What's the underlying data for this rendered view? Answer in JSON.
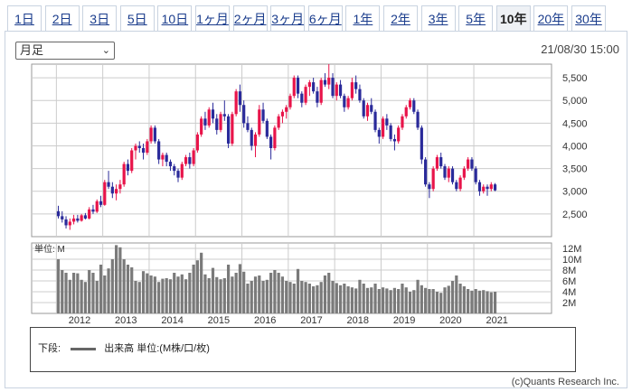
{
  "period_tabs": [
    "1日",
    "2日",
    "3日",
    "5日",
    "10日",
    "1ヶ月",
    "2ヶ月",
    "3ヶ月",
    "6ヶ月",
    "1年",
    "2年",
    "3年",
    "5年",
    "10年",
    "20年",
    "30年"
  ],
  "active_tab": "10年",
  "interval_select": "月足",
  "timestamp": "21/08/30 15:00",
  "legend_prefix": "下段:",
  "legend_label": "出来高 単位:(M株/口/枚)",
  "copyright": "(c)Quants Research Inc.",
  "colors": {
    "up": "#e8144a",
    "down": "#2a2a9a",
    "volume": "#7a7a7a",
    "grid": "#cccccc"
  },
  "chart_data": [
    {
      "type": "candlestick",
      "x_tick_labels": [
        "2012",
        "2013",
        "2014",
        "2015",
        "2016",
        "2017",
        "2018",
        "2019",
        "2020",
        "2021"
      ],
      "y_tick_labels": [
        "2,500",
        "3,000",
        "3,500",
        "4,000",
        "4,500",
        "5,000",
        "5,500"
      ],
      "ylim": [
        2000,
        5800
      ],
      "start_year": 2011.5,
      "ohlc": [
        [
          2560,
          2680,
          2400,
          2450
        ],
        [
          2450,
          2560,
          2310,
          2380
        ],
        [
          2380,
          2450,
          2180,
          2250
        ],
        [
          2250,
          2400,
          2150,
          2330
        ],
        [
          2330,
          2480,
          2270,
          2400
        ],
        [
          2400,
          2480,
          2310,
          2350
        ],
        [
          2350,
          2500,
          2330,
          2470
        ],
        [
          2470,
          2520,
          2380,
          2400
        ],
        [
          2400,
          2650,
          2380,
          2600
        ],
        [
          2600,
          2700,
          2500,
          2550
        ],
        [
          2550,
          2820,
          2520,
          2780
        ],
        [
          2780,
          2900,
          2650,
          2700
        ],
        [
          2700,
          3250,
          2680,
          3200
        ],
        [
          3200,
          3450,
          3050,
          3100
        ],
        [
          3100,
          3200,
          2850,
          2950
        ],
        [
          2950,
          3150,
          2800,
          3050
        ],
        [
          3050,
          3250,
          2950,
          3150
        ],
        [
          3150,
          3650,
          3100,
          3600
        ],
        [
          3600,
          3700,
          3350,
          3450
        ],
        [
          3450,
          3950,
          3400,
          3900
        ],
        [
          3900,
          4050,
          3700,
          4000
        ],
        [
          4000,
          4100,
          3850,
          3950
        ],
        [
          3950,
          4050,
          3700,
          3850
        ],
        [
          3850,
          4150,
          3800,
          4100
        ],
        [
          4100,
          4450,
          4050,
          4400
        ],
        [
          4400,
          4450,
          4050,
          4100
        ],
        [
          4100,
          4150,
          3600,
          3700
        ],
        [
          3700,
          3850,
          3550,
          3800
        ],
        [
          3800,
          3850,
          3550,
          3650
        ],
        [
          3650,
          3700,
          3450,
          3550
        ],
        [
          3550,
          3600,
          3350,
          3450
        ],
        [
          3450,
          3500,
          3200,
          3300
        ],
        [
          3300,
          3650,
          3250,
          3600
        ],
        [
          3600,
          3800,
          3550,
          3750
        ],
        [
          3750,
          3850,
          3500,
          3600
        ],
        [
          3600,
          3950,
          3550,
          3900
        ],
        [
          3900,
          4300,
          3850,
          4250
        ],
        [
          4250,
          4650,
          4200,
          4600
        ],
        [
          4600,
          4750,
          4350,
          4450
        ],
        [
          4450,
          4850,
          4400,
          4800
        ],
        [
          4800,
          4950,
          4500,
          4600
        ],
        [
          4600,
          4700,
          4250,
          4350
        ],
        [
          4350,
          4750,
          4300,
          4700
        ],
        [
          4700,
          5000,
          4550,
          4650
        ],
        [
          4650,
          4700,
          3950,
          4050
        ],
        [
          4050,
          4750,
          4000,
          4700
        ],
        [
          4700,
          5250,
          4650,
          5200
        ],
        [
          5200,
          5350,
          4750,
          4900
        ],
        [
          4900,
          5000,
          4400,
          4500
        ],
        [
          4500,
          4650,
          4300,
          4350
        ],
        [
          4350,
          4400,
          3900,
          4000
        ],
        [
          4000,
          4300,
          3750,
          4250
        ],
        [
          4250,
          4900,
          4200,
          4800
        ],
        [
          4800,
          4950,
          4500,
          4550
        ],
        [
          4550,
          4600,
          4150,
          4200
        ],
        [
          4200,
          4250,
          3700,
          3950
        ],
        [
          3950,
          4450,
          3900,
          4400
        ],
        [
          4400,
          4700,
          4350,
          4650
        ],
        [
          4650,
          4800,
          4500,
          4750
        ],
        [
          4750,
          4900,
          4600,
          4850
        ],
        [
          4850,
          5150,
          4800,
          5100
        ],
        [
          5100,
          5550,
          5050,
          5500
        ],
        [
          5500,
          5550,
          5050,
          5150
        ],
        [
          5150,
          5200,
          4850,
          4950
        ],
        [
          4950,
          5350,
          4900,
          5300
        ],
        [
          5300,
          5450,
          5100,
          5400
        ],
        [
          5400,
          5500,
          5150,
          5200
        ],
        [
          5200,
          5300,
          4850,
          4950
        ],
        [
          4950,
          5500,
          4900,
          5450
        ],
        [
          5450,
          5600,
          5300,
          5350
        ],
        [
          5350,
          5800,
          5250,
          5500
        ],
        [
          5500,
          5600,
          5050,
          5100
        ],
        [
          5100,
          5400,
          5000,
          5350
        ],
        [
          5350,
          5450,
          5050,
          5100
        ],
        [
          5100,
          5150,
          4750,
          4850
        ],
        [
          4850,
          5100,
          4800,
          5050
        ],
        [
          5050,
          5500,
          5000,
          5400
        ],
        [
          5400,
          5550,
          5150,
          5250
        ],
        [
          5250,
          5350,
          4950,
          5000
        ],
        [
          5000,
          5050,
          4600,
          4650
        ],
        [
          4650,
          4950,
          4550,
          4900
        ],
        [
          4900,
          5050,
          4700,
          4750
        ],
        [
          4750,
          4800,
          4300,
          4350
        ],
        [
          4350,
          4400,
          4050,
          4200
        ],
        [
          4200,
          4650,
          4150,
          4600
        ],
        [
          4600,
          4700,
          4350,
          4450
        ],
        [
          4450,
          4500,
          4100,
          4150
        ],
        [
          4150,
          4250,
          3900,
          4100
        ],
        [
          4100,
          4450,
          4050,
          4400
        ],
        [
          4400,
          4700,
          4350,
          4650
        ],
        [
          4650,
          4900,
          4600,
          4850
        ],
        [
          4850,
          5050,
          4800,
          5000
        ],
        [
          5000,
          5050,
          4700,
          4750
        ],
        [
          4750,
          4800,
          4350,
          4400
        ],
        [
          4400,
          4450,
          3600,
          3700
        ],
        [
          3700,
          3750,
          3100,
          3150
        ],
        [
          3150,
          3200,
          2850,
          3050
        ],
        [
          3050,
          3550,
          3000,
          3500
        ],
        [
          3500,
          3800,
          3450,
          3750
        ],
        [
          3750,
          3850,
          3500,
          3550
        ],
        [
          3550,
          3600,
          3250,
          3300
        ],
        [
          3300,
          3550,
          3200,
          3500
        ],
        [
          3500,
          3550,
          3150,
          3200
        ],
        [
          3200,
          3250,
          3000,
          3050
        ],
        [
          3050,
          3350,
          3000,
          3300
        ],
        [
          3300,
          3550,
          3250,
          3500
        ],
        [
          3500,
          3750,
          3450,
          3700
        ],
        [
          3700,
          3750,
          3450,
          3500
        ],
        [
          3500,
          3550,
          3150,
          3200
        ],
        [
          3200,
          3250,
          2900,
          3000
        ],
        [
          3000,
          3150,
          2950,
          3100
        ],
        [
          3100,
          3150,
          2900,
          3050
        ],
        [
          3050,
          3200,
          3000,
          3150
        ],
        [
          3150,
          3180,
          3000,
          3020
        ]
      ],
      "volume_tick_labels": [
        "2M",
        "4M",
        "6M",
        "8M",
        "10M",
        "12M"
      ],
      "volume_unit_label": "単位: M",
      "volume_ylim": [
        0,
        13
      ],
      "volume": [
        10,
        8,
        7.5,
        6.2,
        7.5,
        7.4,
        6.2,
        5.8,
        8,
        7.5,
        6,
        9,
        7,
        8.3,
        10,
        12.6,
        12.2,
        10,
        9,
        8.5,
        6,
        5.8,
        7.8,
        7.4,
        7,
        6.8,
        5.8,
        6.4,
        6.5,
        6.3,
        7.5,
        6.8,
        7.2,
        6.3,
        7.5,
        9,
        9.8,
        11.2,
        7.2,
        6.5,
        8.4,
        6.7,
        6.3,
        6.5,
        9,
        6.8,
        7.5,
        9.1,
        7.7,
        5.5,
        6,
        6.8,
        7,
        6,
        6.2,
        7.5,
        8,
        7.5,
        6.8,
        6,
        5.8,
        5.5,
        8.2,
        6,
        5.8,
        5.5,
        5,
        5.2,
        5.8,
        7,
        7.5,
        6,
        5.6,
        5.2,
        5.5,
        5,
        4.8,
        4.6,
        6.2,
        5.5,
        4.7,
        4.8,
        5.5,
        4.5,
        4.8,
        4.6,
        4.3,
        4.7,
        4.5,
        5.5,
        4.8,
        4,
        4.3,
        6.2,
        5.2,
        4.7,
        4.5,
        4.5,
        4,
        3.8,
        4.8,
        5.1,
        6,
        7,
        5.5,
        5,
        4.5,
        4.2,
        4.5,
        4.2,
        4.3,
        4.1,
        3.9,
        4.0
      ]
    }
  ]
}
